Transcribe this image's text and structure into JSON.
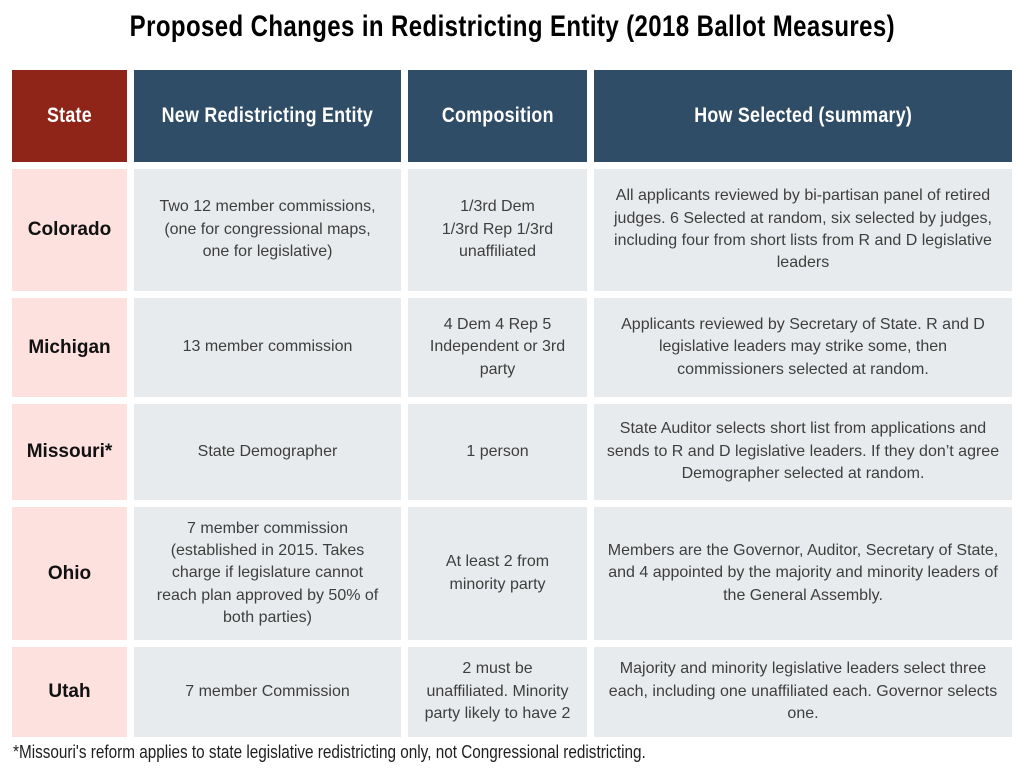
{
  "title": "Proposed Changes in Redistricting Entity (2018 Ballot Measures)",
  "chart_data": {
    "type": "table",
    "title": "Proposed Changes in Redistricting Entity (2018 Ballot Measures)",
    "columns": [
      "State",
      "New Redistricting Entity",
      "Composition",
      "How Selected (summary)"
    ],
    "rows": [
      [
        "Colorado",
        "Two 12 member commissions, (one for congressional maps, one for legislative)",
        "1/3rd Dem\n1/3rd Rep 1/3rd unaffiliated",
        "All applicants reviewed by bi-partisan panel of retired judges. 6 Selected at random, six selected by judges, including four from short lists from R and D legislative leaders"
      ],
      [
        "Michigan",
        "13 member commission",
        "4 Dem 4 Rep 5 Independent or 3rd party",
        "Applicants reviewed by Secretary of State. R and D legislative leaders may strike some, then commissioners selected at random."
      ],
      [
        "Missouri*",
        "State Demographer",
        "1 person",
        "State Auditor selects short list from applications and sends to R and D legislative leaders. If they don’t agree Demographer selected at random."
      ],
      [
        "Ohio",
        "7 member commission (established in 2015. Takes charge if legislature cannot reach plan approved by 50% of both parties)",
        "At least 2 from minority party",
        "Members are the Governor, Auditor, Secretary of State, and 4 appointed by the majority and minority leaders of the General Assembly."
      ],
      [
        "Utah",
        "7 member Commission",
        "2 must be unaffiliated. Minority party likely to have 2",
        "Majority and minority legislative leaders select three each, including one unaffiliated each. Governor selects one."
      ]
    ],
    "footnote": "*Missouri's reform applies to state legislative redistricting only, not Congressional redistricting.",
    "layout_hints": {
      "grid": "off",
      "header_position": "top"
    }
  },
  "colors": {
    "state_header_bg": "#8F2518",
    "column_header_bg": "#2F4D66",
    "header_text": "#FFFFFF",
    "state_cell_bg": "#FDE1DF",
    "body_cell_bg": "#E8EBEE",
    "body_text": "#3E3E3D",
    "title_text": "#000000"
  }
}
